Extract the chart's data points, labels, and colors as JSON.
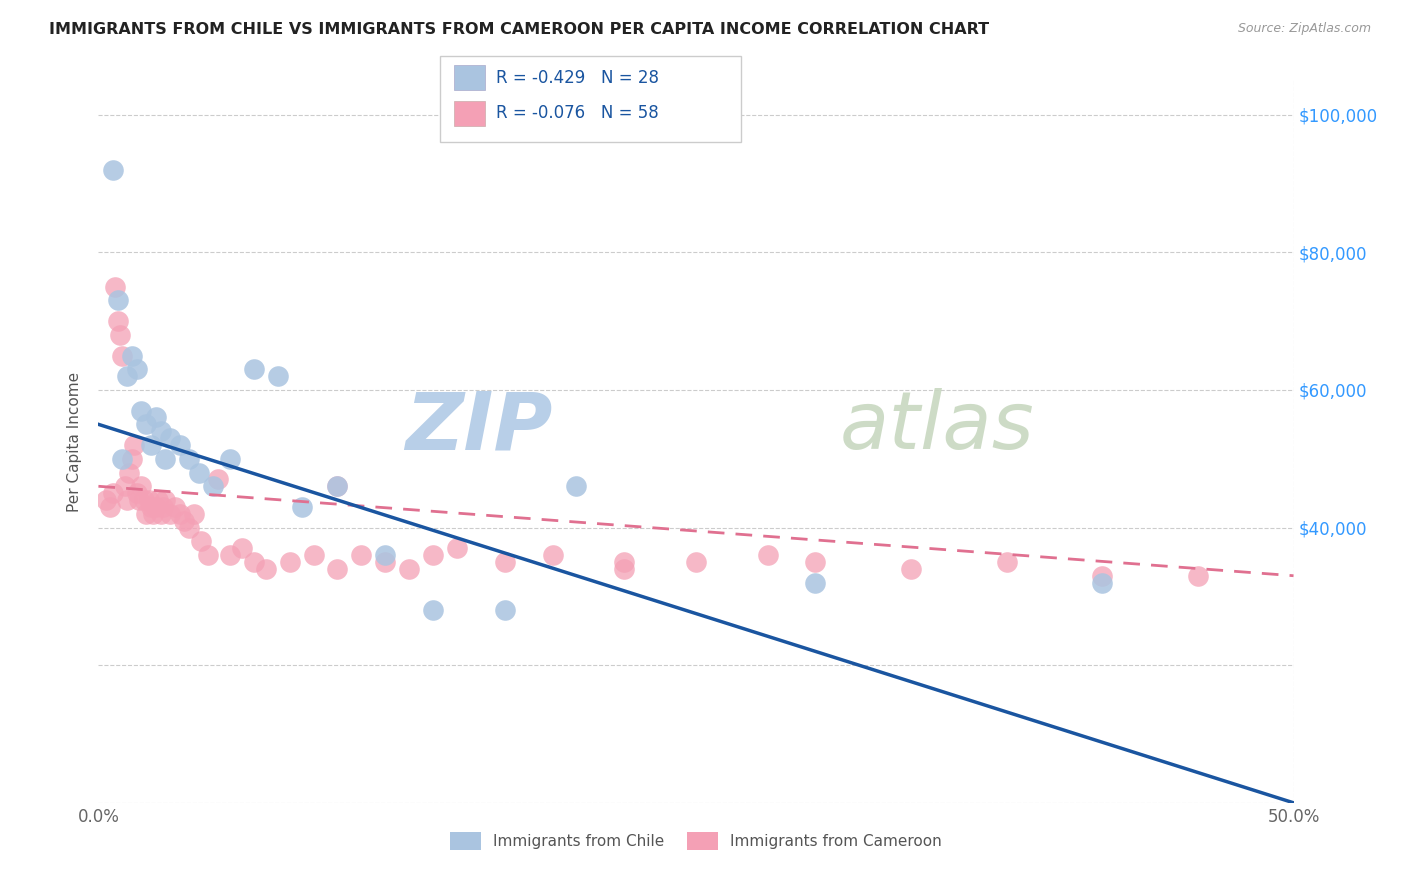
{
  "title": "IMMIGRANTS FROM CHILE VS IMMIGRANTS FROM CAMEROON PER CAPITA INCOME CORRELATION CHART",
  "source": "Source: ZipAtlas.com",
  "ylabel": "Per Capita Income",
  "x_min": 0.0,
  "x_max": 0.5,
  "y_min": 0,
  "y_max": 105000,
  "x_ticks": [
    0.0,
    0.1,
    0.2,
    0.3,
    0.4,
    0.5
  ],
  "x_tick_labels": [
    "0.0%",
    "",
    "",
    "",
    "",
    "50.0%"
  ],
  "y_ticks": [
    0,
    20000,
    40000,
    60000,
    80000,
    100000
  ],
  "y_tick_labels_right": [
    "",
    "",
    "$40,000",
    "$60,000",
    "$80,000",
    "$100,000"
  ],
  "legend_label_1": "Immigrants from Chile",
  "legend_label_2": "Immigrants from Cameroon",
  "r1": "-0.429",
  "n1": "28",
  "r2": "-0.076",
  "n2": "58",
  "color_chile": "#aac4e0",
  "color_cameroon": "#f4a0b5",
  "trendline_chile_color": "#1a55a0",
  "trendline_cameroon_color": "#e07090",
  "watermark_zip": "ZIP",
  "watermark_atlas": "atlas",
  "watermark_color": "#c8d8ea",
  "grid_color": "#cccccc",
  "background_color": "#ffffff",
  "chile_trendline_y0": 55000,
  "chile_trendline_y1": 0,
  "cameroon_trendline_y0": 46000,
  "cameroon_trendline_y1": 33000,
  "chile_x": [
    0.006,
    0.008,
    0.01,
    0.012,
    0.014,
    0.016,
    0.018,
    0.02,
    0.022,
    0.024,
    0.026,
    0.028,
    0.03,
    0.034,
    0.038,
    0.042,
    0.048,
    0.055,
    0.065,
    0.075,
    0.085,
    0.1,
    0.12,
    0.14,
    0.17,
    0.2,
    0.3,
    0.42
  ],
  "chile_y": [
    92000,
    73000,
    50000,
    62000,
    65000,
    63000,
    57000,
    55000,
    52000,
    56000,
    54000,
    50000,
    53000,
    52000,
    50000,
    48000,
    46000,
    50000,
    63000,
    62000,
    43000,
    46000,
    36000,
    28000,
    28000,
    46000,
    32000,
    32000
  ],
  "cameroon_x": [
    0.003,
    0.005,
    0.006,
    0.007,
    0.008,
    0.009,
    0.01,
    0.011,
    0.012,
    0.013,
    0.014,
    0.015,
    0.016,
    0.017,
    0.018,
    0.019,
    0.02,
    0.021,
    0.022,
    0.023,
    0.024,
    0.025,
    0.026,
    0.027,
    0.028,
    0.03,
    0.032,
    0.034,
    0.036,
    0.038,
    0.04,
    0.043,
    0.046,
    0.05,
    0.055,
    0.06,
    0.065,
    0.07,
    0.08,
    0.09,
    0.1,
    0.11,
    0.12,
    0.13,
    0.14,
    0.15,
    0.17,
    0.19,
    0.22,
    0.25,
    0.28,
    0.3,
    0.34,
    0.38,
    0.42,
    0.46,
    0.1,
    0.22
  ],
  "cameroon_y": [
    44000,
    43000,
    45000,
    75000,
    70000,
    68000,
    65000,
    46000,
    44000,
    48000,
    50000,
    52000,
    45000,
    44000,
    46000,
    44000,
    42000,
    44000,
    43000,
    42000,
    43000,
    44000,
    42000,
    43000,
    44000,
    42000,
    43000,
    42000,
    41000,
    40000,
    42000,
    38000,
    36000,
    47000,
    36000,
    37000,
    35000,
    34000,
    35000,
    36000,
    34000,
    36000,
    35000,
    34000,
    36000,
    37000,
    35000,
    36000,
    34000,
    35000,
    36000,
    35000,
    34000,
    35000,
    33000,
    33000,
    46000,
    35000
  ]
}
